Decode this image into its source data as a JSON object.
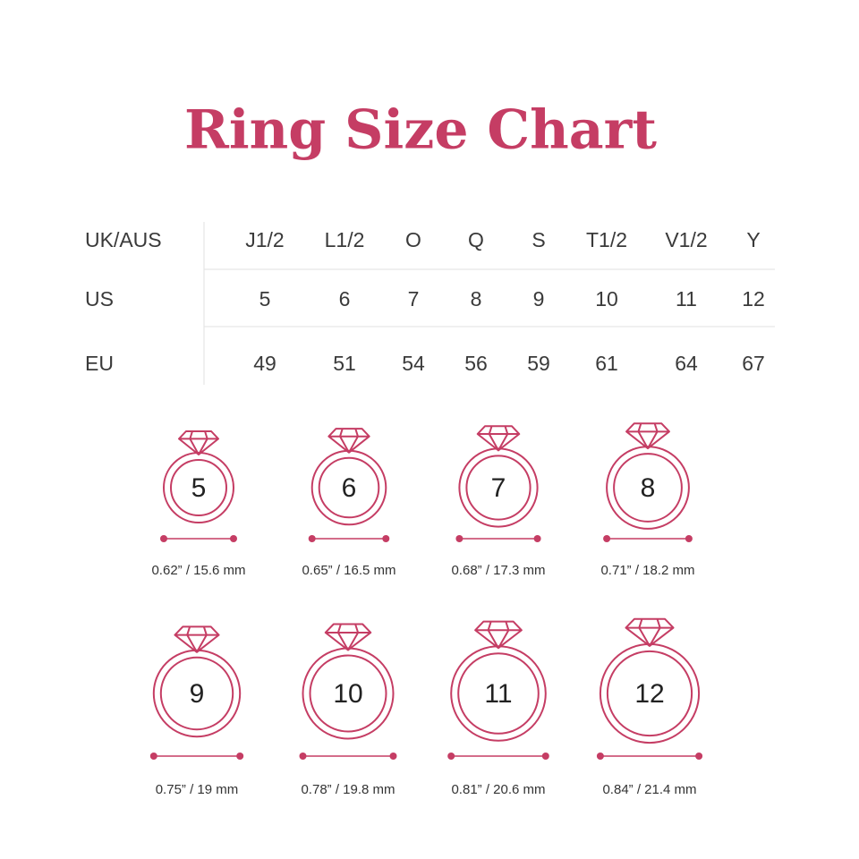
{
  "title": "Ring Size Chart",
  "table": {
    "rows": [
      [
        "UK/AUS",
        "J1/2",
        "L1/2",
        "O",
        "Q",
        "S",
        "T1/2",
        "V1/2",
        "Y"
      ],
      [
        "US",
        "5",
        "6",
        "7",
        "8",
        "9",
        "10",
        "11",
        "12"
      ],
      [
        "EU",
        "49",
        "51",
        "54",
        "56",
        "59",
        "61",
        "64",
        "67"
      ]
    ]
  },
  "rings": [
    {
      "size": "5",
      "measure": "0.62” / 15.6 mm"
    },
    {
      "size": "6",
      "measure": "0.65” / 16.5 mm"
    },
    {
      "size": "7",
      "measure": "0.68” / 17.3 mm"
    },
    {
      "size": "8",
      "measure": "0.71” / 18.2 mm"
    },
    {
      "size": "9",
      "measure": "0.75” / 19 mm"
    },
    {
      "size": "10",
      "measure": "0.78” / 19.8 mm"
    },
    {
      "size": "11",
      "measure": "0.81” / 20.6 mm"
    },
    {
      "size": "12",
      "measure": "0.84” / 21.4 mm"
    }
  ]
}
